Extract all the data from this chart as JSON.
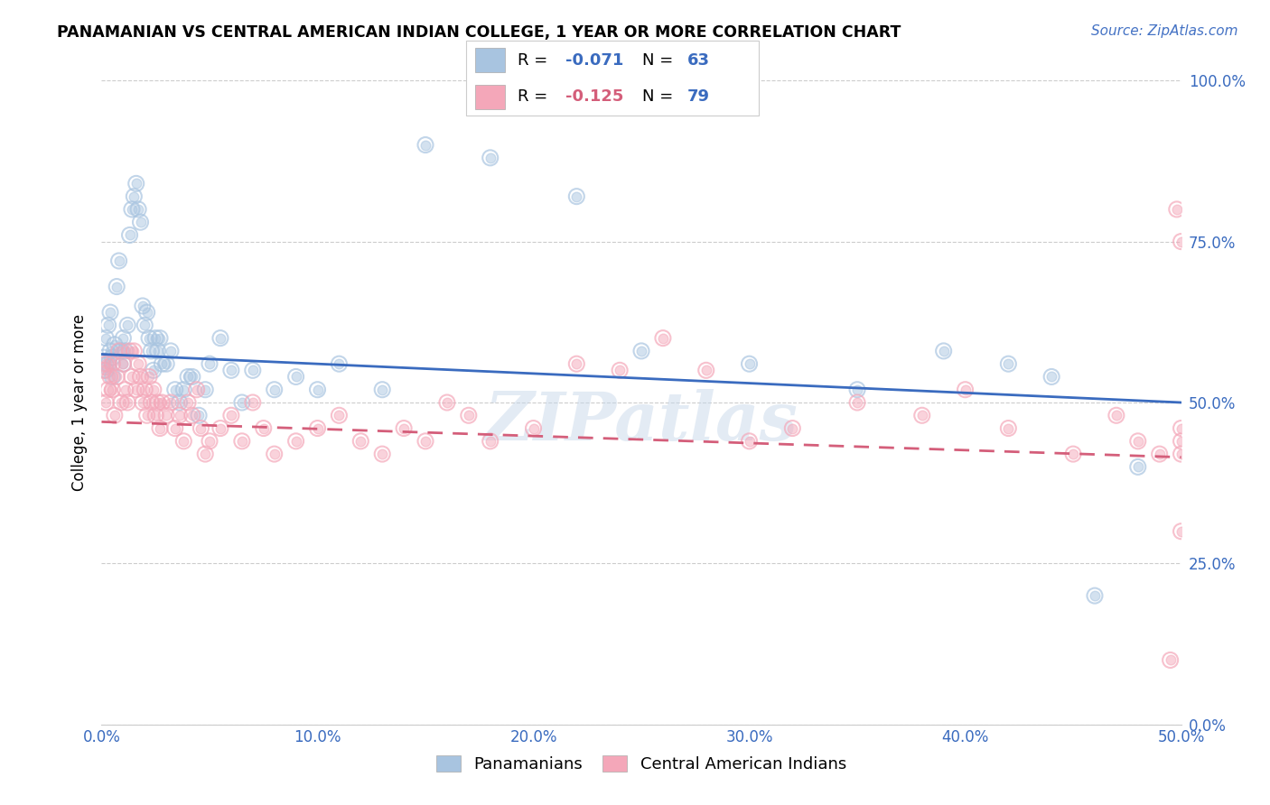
{
  "title": "PANAMANIAN VS CENTRAL AMERICAN INDIAN COLLEGE, 1 YEAR OR MORE CORRELATION CHART",
  "source": "Source: ZipAtlas.com",
  "xlabel_ticks": [
    "0.0%",
    "10.0%",
    "20.0%",
    "30.0%",
    "40.0%",
    "50.0%"
  ],
  "xlabel_vals": [
    0.0,
    0.1,
    0.2,
    0.3,
    0.4,
    0.5
  ],
  "ylabel_ticks": [
    "0.0%",
    "25.0%",
    "50.0%",
    "75.0%",
    "100.0%"
  ],
  "ylabel_vals": [
    0.0,
    0.25,
    0.5,
    0.75,
    1.0
  ],
  "ylabel_label": "College, 1 year or more",
  "blue_label": "Panamanians",
  "pink_label": "Central American Indians",
  "blue_R": "-0.071",
  "blue_N": "63",
  "pink_R": "-0.125",
  "pink_N": "79",
  "blue_color": "#a8c4e0",
  "pink_color": "#f4a7b9",
  "blue_line_color": "#3a6bbf",
  "pink_line_color": "#d45e7a",
  "xlim": [
    0.0,
    0.5
  ],
  "ylim": [
    0.0,
    1.0
  ],
  "blue_scatter_x": [
    0.001,
    0.002,
    0.002,
    0.003,
    0.003,
    0.004,
    0.004,
    0.005,
    0.005,
    0.006,
    0.007,
    0.008,
    0.009,
    0.01,
    0.01,
    0.011,
    0.012,
    0.013,
    0.014,
    0.015,
    0.016,
    0.017,
    0.018,
    0.019,
    0.02,
    0.021,
    0.022,
    0.023,
    0.024,
    0.025,
    0.026,
    0.027,
    0.028,
    0.03,
    0.032,
    0.034,
    0.036,
    0.038,
    0.04,
    0.042,
    0.045,
    0.048,
    0.05,
    0.055,
    0.06,
    0.065,
    0.07,
    0.08,
    0.09,
    0.1,
    0.11,
    0.13,
    0.15,
    0.18,
    0.22,
    0.25,
    0.3,
    0.35,
    0.39,
    0.42,
    0.44,
    0.46,
    0.48
  ],
  "blue_scatter_y": [
    0.57,
    0.55,
    0.6,
    0.56,
    0.62,
    0.58,
    0.64,
    0.57,
    0.54,
    0.59,
    0.68,
    0.72,
    0.58,
    0.6,
    0.56,
    0.58,
    0.62,
    0.76,
    0.8,
    0.82,
    0.84,
    0.8,
    0.78,
    0.65,
    0.62,
    0.64,
    0.6,
    0.58,
    0.55,
    0.6,
    0.58,
    0.6,
    0.56,
    0.56,
    0.58,
    0.52,
    0.5,
    0.52,
    0.54,
    0.54,
    0.48,
    0.52,
    0.56,
    0.6,
    0.55,
    0.5,
    0.55,
    0.52,
    0.54,
    0.52,
    0.56,
    0.52,
    0.9,
    0.88,
    0.82,
    0.58,
    0.56,
    0.52,
    0.58,
    0.56,
    0.54,
    0.2,
    0.4
  ],
  "pink_scatter_x": [
    0.001,
    0.002,
    0.002,
    0.003,
    0.004,
    0.005,
    0.005,
    0.006,
    0.007,
    0.008,
    0.009,
    0.01,
    0.011,
    0.012,
    0.013,
    0.014,
    0.015,
    0.016,
    0.017,
    0.018,
    0.019,
    0.02,
    0.021,
    0.022,
    0.023,
    0.024,
    0.025,
    0.026,
    0.027,
    0.028,
    0.03,
    0.032,
    0.034,
    0.036,
    0.038,
    0.04,
    0.042,
    0.044,
    0.046,
    0.048,
    0.05,
    0.055,
    0.06,
    0.065,
    0.07,
    0.075,
    0.08,
    0.09,
    0.1,
    0.11,
    0.12,
    0.13,
    0.14,
    0.15,
    0.16,
    0.17,
    0.18,
    0.2,
    0.22,
    0.24,
    0.26,
    0.28,
    0.3,
    0.32,
    0.35,
    0.38,
    0.4,
    0.42,
    0.45,
    0.47,
    0.48,
    0.49,
    0.495,
    0.498,
    0.5,
    0.5,
    0.5,
    0.5,
    0.5
  ],
  "pink_scatter_y": [
    0.55,
    0.5,
    0.56,
    0.52,
    0.54,
    0.56,
    0.52,
    0.48,
    0.54,
    0.58,
    0.5,
    0.56,
    0.52,
    0.5,
    0.58,
    0.54,
    0.58,
    0.52,
    0.56,
    0.54,
    0.5,
    0.52,
    0.48,
    0.54,
    0.5,
    0.52,
    0.48,
    0.5,
    0.46,
    0.5,
    0.48,
    0.5,
    0.46,
    0.48,
    0.44,
    0.5,
    0.48,
    0.52,
    0.46,
    0.42,
    0.44,
    0.46,
    0.48,
    0.44,
    0.5,
    0.46,
    0.42,
    0.44,
    0.46,
    0.48,
    0.44,
    0.42,
    0.46,
    0.44,
    0.5,
    0.48,
    0.44,
    0.46,
    0.56,
    0.55,
    0.6,
    0.55,
    0.44,
    0.46,
    0.5,
    0.48,
    0.52,
    0.46,
    0.42,
    0.48,
    0.44,
    0.42,
    0.1,
    0.8,
    0.75,
    0.42,
    0.44,
    0.46,
    0.3
  ]
}
